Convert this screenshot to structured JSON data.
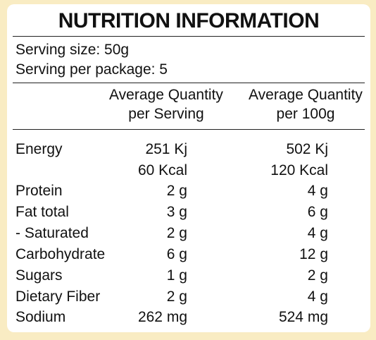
{
  "title": "NUTRITION INFORMATION",
  "serving_size": "Serving size: 50g",
  "servings_per_package": "Serving per package: 5",
  "columns": {
    "per_serving_line1": "Average Quantity",
    "per_serving_line2": "per Serving",
    "per_100g_line1": "Average Quantity",
    "per_100g_line2": "per 100g"
  },
  "rows": [
    {
      "label": "Energy",
      "per_serving": "251 Kj",
      "per_100g": "502 Kj"
    },
    {
      "label": "",
      "per_serving": "60 Kcal",
      "per_100g": "120 Kcal"
    },
    {
      "label": "Protein",
      "per_serving": "2 g",
      "per_100g": "4 g"
    },
    {
      "label": "Fat total",
      "per_serving": "3 g",
      "per_100g": "6 g"
    },
    {
      "label": "- Saturated",
      "per_serving": "2 g",
      "per_100g": "4 g"
    },
    {
      "label": "Carbohydrate",
      "per_serving": "6 g",
      "per_100g": "12 g"
    },
    {
      "label": "Sugars",
      "per_serving": "1 g",
      "per_100g": "2 g"
    },
    {
      "label": "Dietary Fiber",
      "per_serving": "2 g",
      "per_100g": "4 g"
    },
    {
      "label": "Sodium",
      "per_serving": "262 mg",
      "per_100g": "524 mg"
    }
  ],
  "colors": {
    "background": "#f9ecc3",
    "panel": "#ffffff",
    "text": "#111111"
  }
}
